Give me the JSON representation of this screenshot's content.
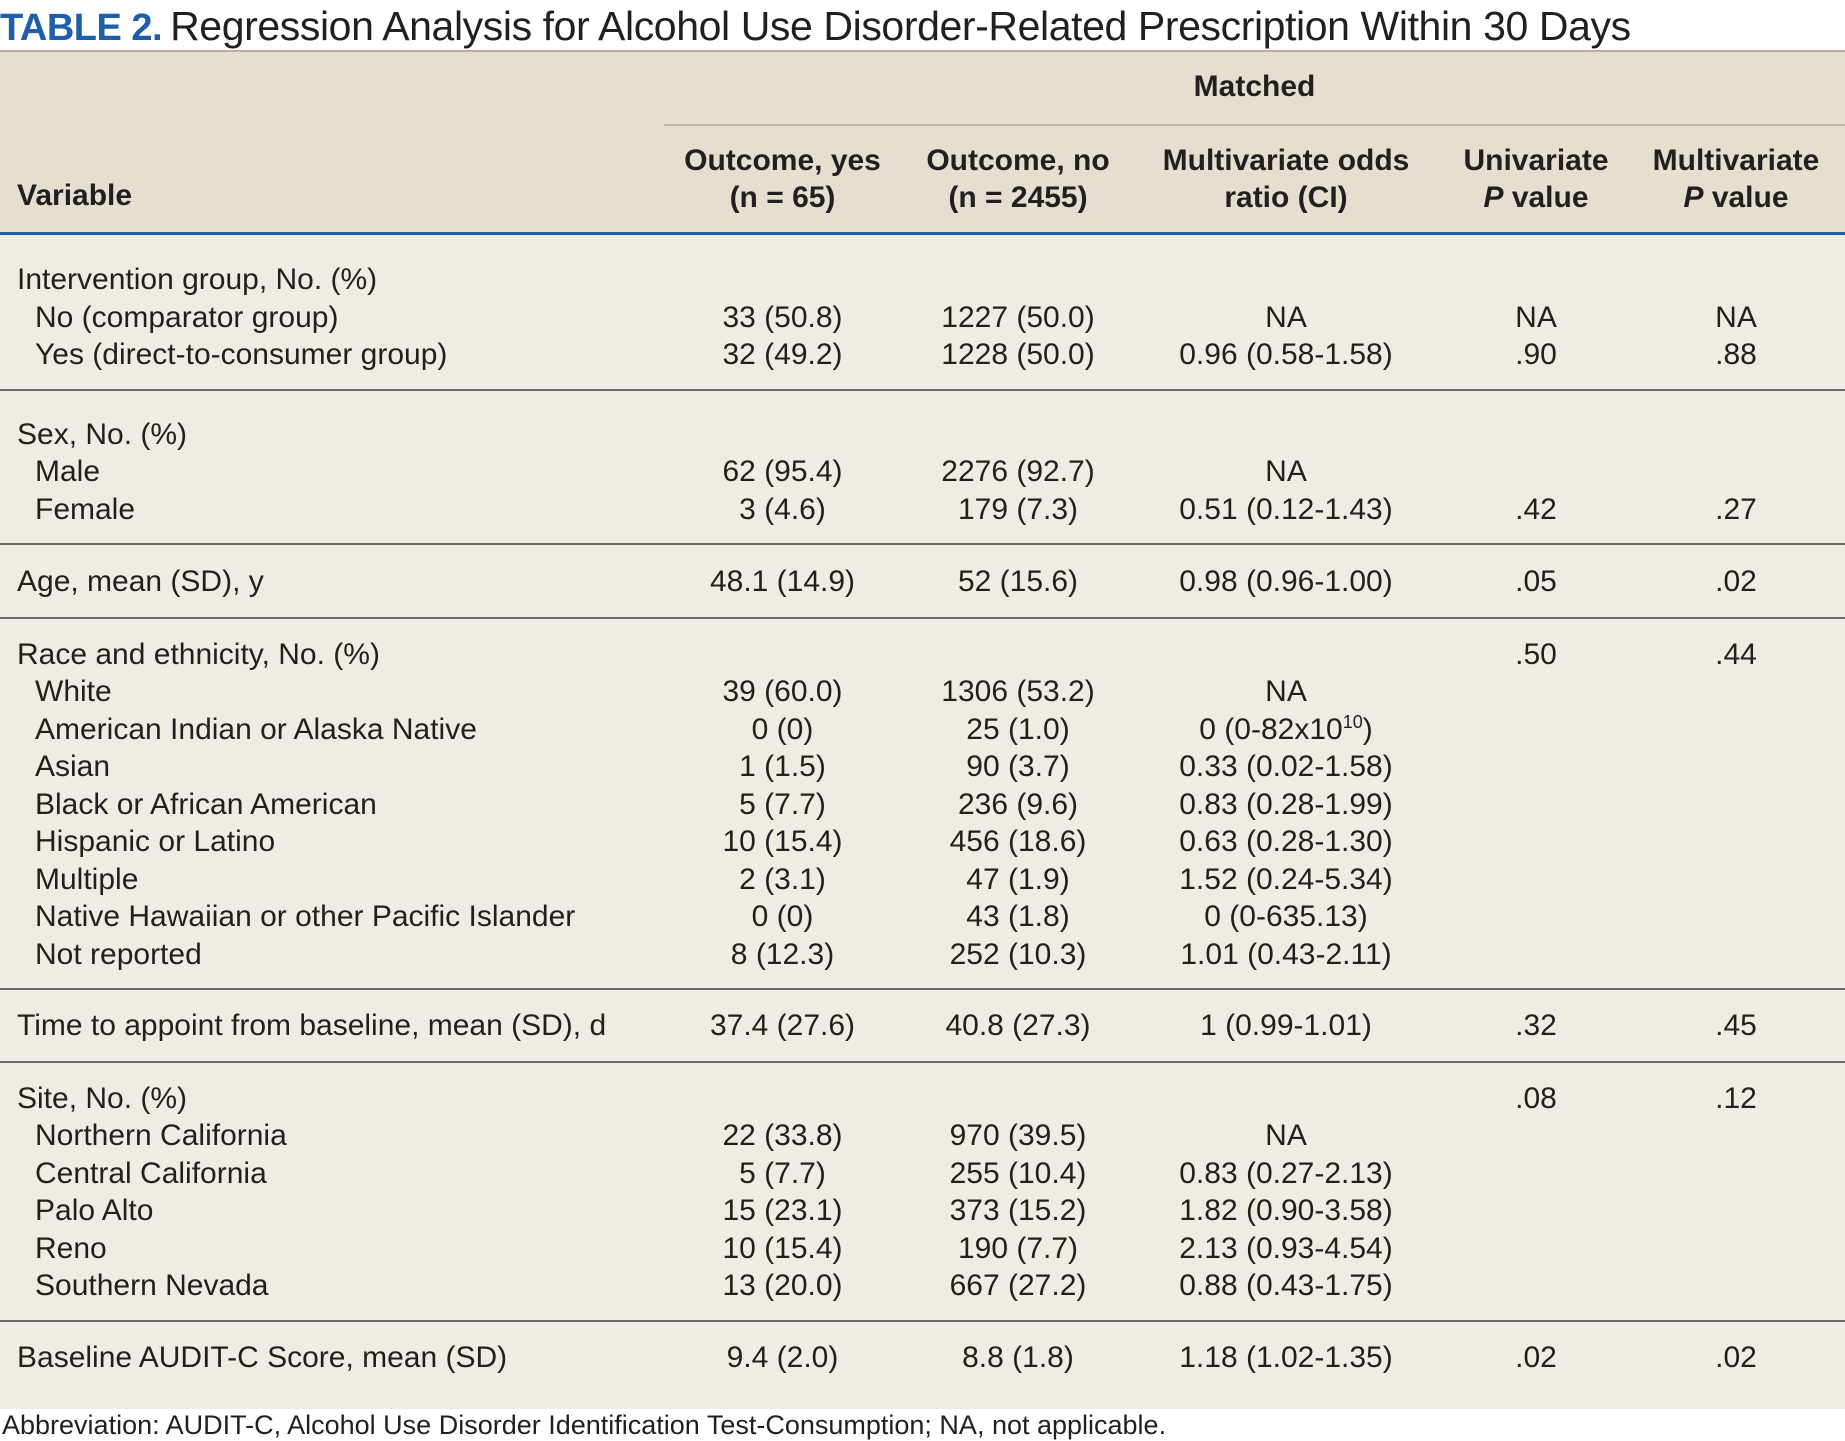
{
  "title": {
    "label": "TABLE 2.",
    "text": "Regression Analysis for Alcohol Use Disorder-Related Prescription Within 30 Days"
  },
  "header": {
    "group_label": "Matched",
    "variable": "Variable",
    "col1": [
      "Outcome, yes",
      "(n = 65)"
    ],
    "col2": [
      "Outcome, no",
      "(n = 2455)"
    ],
    "col3": [
      "Multivariate odds",
      "ratio (CI)"
    ],
    "col4": [
      "Univariate",
      "P",
      "value"
    ],
    "col5": [
      "Multivariate",
      "P",
      "value"
    ]
  },
  "groups": [
    {
      "rows": [
        {
          "label": "Intervention group, No. (%)",
          "indent": false,
          "cells": [
            "",
            "",
            "",
            "",
            ""
          ]
        },
        {
          "label": "No (comparator group)",
          "indent": true,
          "cells": [
            "33 (50.8)",
            "1227 (50.0)",
            "NA",
            "NA",
            "NA"
          ]
        },
        {
          "label": "Yes (direct-to-consumer group)",
          "indent": true,
          "cells": [
            "32 (49.2)",
            "1228 (50.0)",
            "0.96 (0.58-1.58)",
            ".90",
            ".88"
          ]
        }
      ]
    },
    {
      "rows": [
        {
          "label": "Sex, No. (%)",
          "indent": false,
          "cells": [
            "",
            "",
            "",
            "",
            ""
          ]
        },
        {
          "label": "Male",
          "indent": true,
          "cells": [
            "62 (95.4)",
            "2276 (92.7)",
            "NA",
            "",
            ""
          ]
        },
        {
          "label": "Female",
          "indent": true,
          "cells": [
            "3 (4.6)",
            "179 (7.3)",
            "0.51 (0.12-1.43)",
            ".42",
            ".27"
          ]
        }
      ]
    },
    {
      "rows": [
        {
          "label": "Age, mean (SD), y",
          "indent": false,
          "cells": [
            "48.1 (14.9)",
            "52 (15.6)",
            "0.98 (0.96-1.00)",
            ".05",
            ".02"
          ]
        }
      ]
    },
    {
      "rows": [
        {
          "label": "Race and ethnicity, No. (%)",
          "indent": false,
          "cells": [
            "",
            "",
            "",
            ".50",
            ".44"
          ]
        },
        {
          "label": "White",
          "indent": true,
          "cells": [
            "39 (60.0)",
            "1306 (53.2)",
            "NA",
            "",
            ""
          ]
        },
        {
          "label": "American Indian or Alaska Native",
          "indent": true,
          "cells": [
            "0 (0)",
            "25 (1.0)",
            "0 (0-82x10",
            "",
            ""
          ],
          "sup": "10",
          "sup_after": ")"
        },
        {
          "label": "Asian",
          "indent": true,
          "cells": [
            "1 (1.5)",
            "90 (3.7)",
            "0.33 (0.02-1.58)",
            "",
            ""
          ]
        },
        {
          "label": "Black or African American",
          "indent": true,
          "cells": [
            "5 (7.7)",
            "236 (9.6)",
            "0.83 (0.28-1.99)",
            "",
            ""
          ]
        },
        {
          "label": "Hispanic or Latino",
          "indent": true,
          "cells": [
            "10 (15.4)",
            "456 (18.6)",
            "0.63 (0.28-1.30)",
            "",
            ""
          ]
        },
        {
          "label": "Multiple",
          "indent": true,
          "cells": [
            "2 (3.1)",
            "47 (1.9)",
            "1.52 (0.24-5.34)",
            "",
            ""
          ]
        },
        {
          "label": "Native Hawaiian or other Pacific Islander",
          "indent": true,
          "cells": [
            "0 (0)",
            "43 (1.8)",
            "0 (0-635.13)",
            "",
            ""
          ]
        },
        {
          "label": "Not reported",
          "indent": true,
          "cells": [
            "8 (12.3)",
            "252 (10.3)",
            "1.01 (0.43-2.11)",
            "",
            ""
          ]
        }
      ]
    },
    {
      "rows": [
        {
          "label": "Time to appoint from baseline, mean (SD), d",
          "indent": false,
          "cells": [
            "37.4 (27.6)",
            "40.8 (27.3)",
            "1 (0.99-1.01)",
            ".32",
            ".45"
          ]
        }
      ]
    },
    {
      "rows": [
        {
          "label": "Site, No. (%)",
          "indent": false,
          "cells": [
            "",
            "",
            "",
            ".08",
            ".12"
          ]
        },
        {
          "label": "Northern California",
          "indent": true,
          "cells": [
            "22 (33.8)",
            "970 (39.5)",
            "NA",
            "",
            ""
          ]
        },
        {
          "label": "Central California",
          "indent": true,
          "cells": [
            "5 (7.7)",
            "255 (10.4)",
            "0.83 (0.27-2.13)",
            "",
            ""
          ]
        },
        {
          "label": "Palo Alto",
          "indent": true,
          "cells": [
            "15 (23.1)",
            "373 (15.2)",
            "1.82 (0.90-3.58)",
            "",
            ""
          ]
        },
        {
          "label": "Reno",
          "indent": true,
          "cells": [
            "10 (15.4)",
            "190 (7.7)",
            "2.13 (0.93-4.54)",
            "",
            ""
          ]
        },
        {
          "label": "Southern Nevada",
          "indent": true,
          "cells": [
            "13 (20.0)",
            "667 (27.2)",
            "0.88 (0.43-1.75)",
            "",
            ""
          ]
        }
      ]
    },
    {
      "rows": [
        {
          "label": "Baseline AUDIT-C Score, mean (SD)",
          "indent": false,
          "cells": [
            "9.4 (2.0)",
            "8.8 (1.8)",
            "1.18 (1.02-1.35)",
            ".02",
            ".02"
          ]
        }
      ]
    }
  ],
  "footer": "Abbreviation: AUDIT-C, Alcohol Use Disorder Identification Test-Consumption; NA, not applicable.",
  "colors": {
    "accent": "#1f5ea8",
    "header_bg": "#e5dfcf",
    "body_bg": "#f0ece1"
  }
}
